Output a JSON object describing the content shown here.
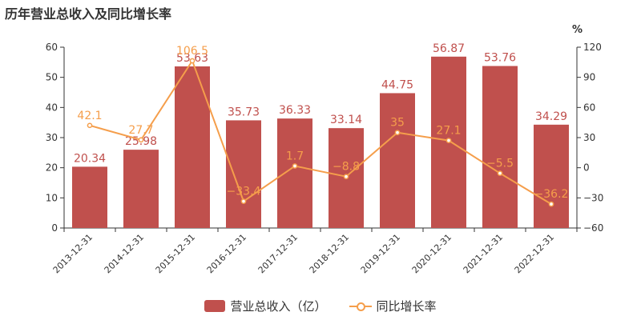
{
  "title": "历年营业总收入及同比增长率",
  "colors": {
    "bar": "#c0504d",
    "line": "#f59e4b",
    "axis": "#333333",
    "bar_label": "#c0504d",
    "line_label": "#f59e4b"
  },
  "chart_data": {
    "type": "bar",
    "title": "历年营业总收入及同比增长率",
    "categories": [
      "2013-12-31",
      "2014-12-31",
      "2015-12-31",
      "2016-12-31",
      "2017-12-31",
      "2018-12-31",
      "2019-12-31",
      "2020-12-31",
      "2021-12-31",
      "2022-12-31"
    ],
    "series": [
      {
        "name": "营业总收入（亿）",
        "type": "bar",
        "axis": "left",
        "values": [
          20.34,
          25.98,
          53.63,
          35.73,
          36.33,
          33.14,
          44.75,
          56.87,
          53.76,
          34.29
        ],
        "labels": [
          "20.34",
          "25.98",
          "53.63",
          "35.73",
          "36.33",
          "33.14",
          "44.75",
          "56.87",
          "53.76",
          "34.29"
        ]
      },
      {
        "name": "同比增长率",
        "type": "line",
        "axis": "right",
        "values": [
          42.1,
          27.7,
          106.5,
          -33.4,
          1.7,
          -8.8,
          35,
          27.1,
          -5.5,
          -36.2
        ],
        "labels": [
          "42.1",
          "27.7",
          "106.5",
          "−33.4",
          "1.7",
          "−8.8",
          "35",
          "27.1",
          "−5.5",
          "−36.2"
        ]
      }
    ],
    "y_left": {
      "ylim": [
        0,
        60
      ],
      "ticks": [
        "0",
        "10",
        "20",
        "30",
        "40",
        "50",
        "60"
      ]
    },
    "y_right": {
      "unit": "%",
      "ylim": [
        -60,
        120
      ],
      "ticks": [
        "−60",
        "−30",
        "0",
        "30",
        "60",
        "90",
        "120"
      ]
    },
    "grid": false,
    "legend_position": "bottom"
  },
  "legend": {
    "bar_label": "营业总收入（亿）",
    "line_label": "同比增长率"
  }
}
